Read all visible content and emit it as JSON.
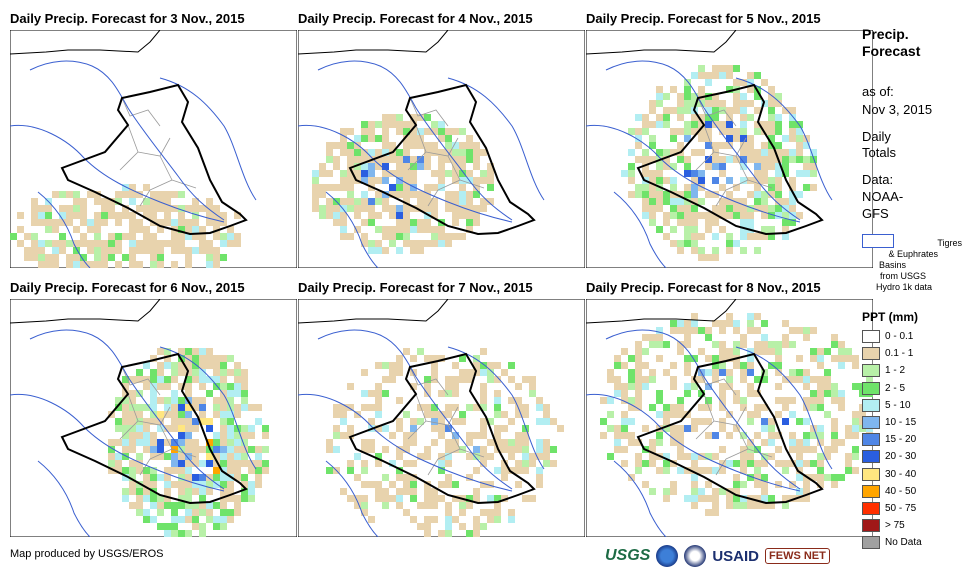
{
  "panels": [
    {
      "title": "Daily Precip. Forecast for 3 Nov., 2015"
    },
    {
      "title": "Daily Precip. Forecast for 4 Nov., 2015"
    },
    {
      "title": "Daily Precip. Forecast for 5 Nov., 2015"
    },
    {
      "title": "Daily Precip. Forecast for 6 Nov., 2015"
    },
    {
      "title": "Daily Precip. Forecast for 7 Nov., 2015"
    },
    {
      "title": "Daily Precip. Forecast for 8 Nov., 2015"
    }
  ],
  "legend": {
    "title_line1": "Precip.",
    "title_line2": "Forecast",
    "asof_label": "as of:",
    "asof_date": "Nov 3, 2015",
    "daily1": "Daily",
    "daily2": "Totals",
    "data_label": "Data:",
    "data1": "NOAA-",
    "data2": "GFS",
    "basin_line1": "Tigres",
    "basin_line2": "& Euphrates",
    "basin_line3": "Basins",
    "basin_line4": "from USGS",
    "basin_line5": "Hydro 1k data",
    "basin_color": "#3a5fd0",
    "ppt_title": "PPT (mm)",
    "classes": [
      {
        "label": "0 - 0.1",
        "color": "#ffffff"
      },
      {
        "label": "0.1 - 1",
        "color": "#e8d3ad"
      },
      {
        "label": "1 - 2",
        "color": "#b8f0a8"
      },
      {
        "label": "2 - 5",
        "color": "#6fe36a"
      },
      {
        "label": "5 - 10",
        "color": "#b2eef2"
      },
      {
        "label": "10 - 15",
        "color": "#7fb6ee"
      },
      {
        "label": "15 - 20",
        "color": "#4f86e6"
      },
      {
        "label": "20 - 30",
        "color": "#2a5ee0"
      },
      {
        "label": "30 - 40",
        "color": "#ffe680"
      },
      {
        "label": "40 - 50",
        "color": "#ffa500"
      },
      {
        "label": "50 - 75",
        "color": "#ff3000"
      },
      {
        "label": "> 75",
        "color": "#a01818"
      },
      {
        "label": "No Data",
        "color": "#a0a0a0"
      }
    ]
  },
  "footer": {
    "credit": "Map produced by USGS/EROS"
  },
  "logos": {
    "usgs": "USGS",
    "usaid": "USAID",
    "fews": "FEWS NET"
  }
}
